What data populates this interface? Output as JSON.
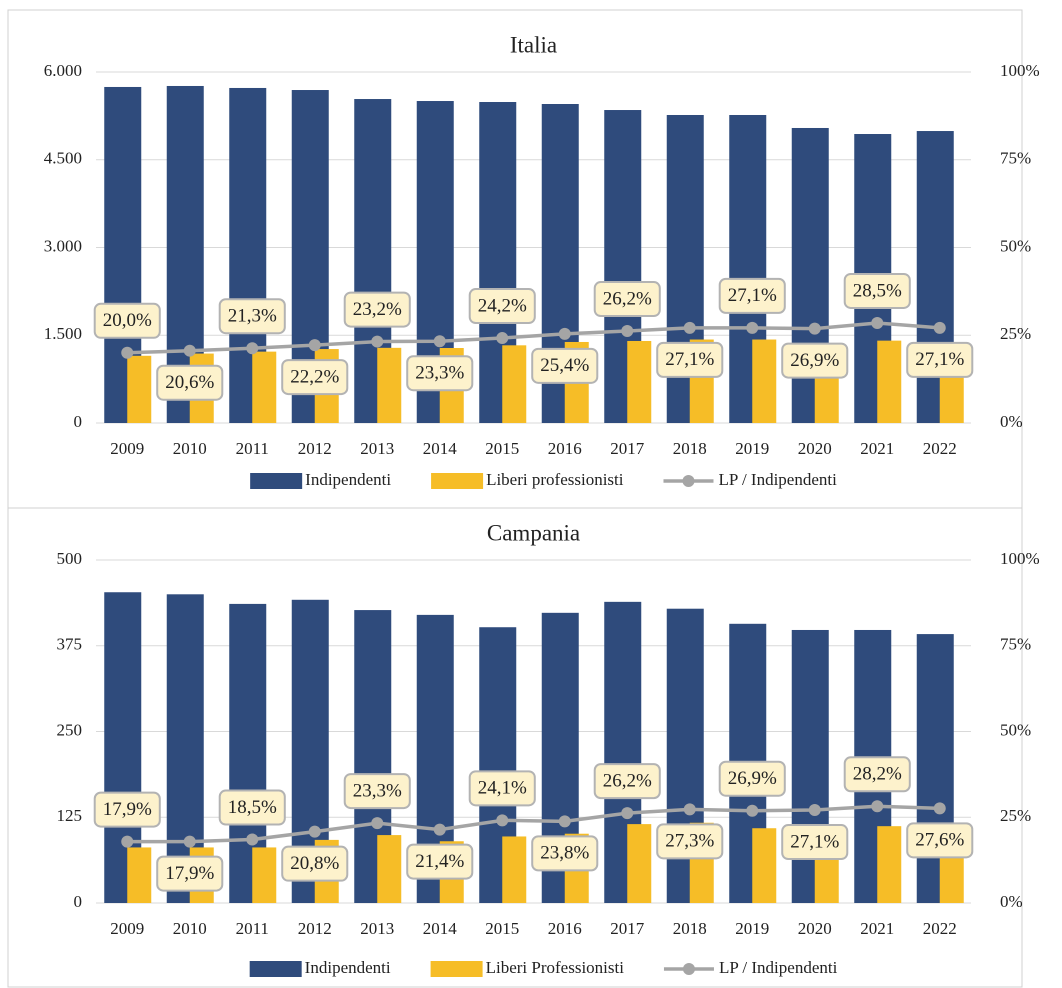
{
  "chart_data": [
    {
      "type": "bar",
      "title": "Italia",
      "categories": [
        "2009",
        "2010",
        "2011",
        "2012",
        "2013",
        "2014",
        "2015",
        "2016",
        "2017",
        "2018",
        "2019",
        "2020",
        "2021",
        "2022"
      ],
      "ylim": [
        0,
        6000
      ],
      "yticks": [
        {
          "value": 0,
          "label": "0"
        },
        {
          "value": 1500,
          "label": "1.500"
        },
        {
          "value": 3000,
          "label": "3.000"
        },
        {
          "value": 4500,
          "label": "4.500"
        },
        {
          "value": 6000,
          "label": "6.000"
        }
      ],
      "y2lim": [
        0,
        100
      ],
      "y2ticks": [
        {
          "value": 0,
          "label": "0%"
        },
        {
          "value": 25,
          "label": "25%"
        },
        {
          "value": 50,
          "label": "50%"
        },
        {
          "value": 75,
          "label": "75%"
        },
        {
          "value": 100,
          "label": "100%"
        }
      ],
      "grid": true,
      "series": [
        {
          "name": "Indipendenti",
          "color": "#2f4b7c",
          "values": [
            5744,
            5761,
            5727,
            5692,
            5538,
            5504,
            5487,
            5453,
            5350,
            5265,
            5265,
            5043,
            4940,
            4991
          ]
        },
        {
          "name": "Liberi professionisti",
          "color": "#f6bd27",
          "values": [
            1149,
            1187,
            1220,
            1264,
            1285,
            1282,
            1328,
            1385,
            1402,
            1427,
            1427,
            1357,
            1408,
            1353
          ]
        },
        {
          "name": "LP / Indipendenti",
          "color": "#a5a5a5",
          "type": "line",
          "axis": "y2",
          "values": [
            20.0,
            20.6,
            21.3,
            22.2,
            23.2,
            23.3,
            24.2,
            25.4,
            26.2,
            27.1,
            27.1,
            26.9,
            28.5,
            27.1
          ],
          "value_labels": [
            "20,0%",
            "20,6%",
            "21,3%",
            "22,2%",
            "23,2%",
            "23,3%",
            "24,2%",
            "25,4%",
            "26,2%",
            "27,1%",
            "27,1%",
            "26,9%",
            "28,5%",
            "27,1%"
          ]
        }
      ]
    },
    {
      "type": "bar",
      "title": "Campania",
      "categories": [
        "2009",
        "2010",
        "2011",
        "2012",
        "2013",
        "2014",
        "2015",
        "2016",
        "2017",
        "2018",
        "2019",
        "2020",
        "2021",
        "2022"
      ],
      "ylim": [
        0,
        500
      ],
      "yticks": [
        0,
        125,
        250,
        375,
        500
      ],
      "y2lim": [
        0,
        100
      ],
      "y2ticks": [
        {
          "value": 0,
          "label": "0%"
        },
        {
          "value": 25,
          "label": "25%"
        },
        {
          "value": 50,
          "label": "50%"
        },
        {
          "value": 75,
          "label": "75%"
        },
        {
          "value": 100,
          "label": "100%"
        }
      ],
      "grid": true,
      "series": [
        {
          "name": "Indipendenti",
          "color": "#2f4b7c",
          "values": [
            453,
            450,
            436,
            442,
            427,
            420,
            402,
            423,
            439,
            429,
            407,
            398,
            398,
            392
          ]
        },
        {
          "name": "Liberi Professionisti",
          "color": "#f6bd27",
          "values": [
            81,
            81,
            81,
            92,
            99,
            90,
            97,
            101,
            115,
            117,
            109,
            108,
            112,
            108
          ]
        },
        {
          "name": "LP / Indipendenti",
          "color": "#a5a5a5",
          "type": "line",
          "axis": "y2",
          "values": [
            17.9,
            17.9,
            18.5,
            20.8,
            23.3,
            21.4,
            24.1,
            23.8,
            26.2,
            27.3,
            26.9,
            27.1,
            28.2,
            27.6
          ],
          "value_labels": [
            "17,9%",
            "17,9%",
            "18,5%",
            "20,8%",
            "23,3%",
            "21,4%",
            "24,1%",
            "23,8%",
            "26,2%",
            "27,3%",
            "26,9%",
            "27,1%",
            "28,2%",
            "27,6%"
          ]
        }
      ]
    }
  ]
}
